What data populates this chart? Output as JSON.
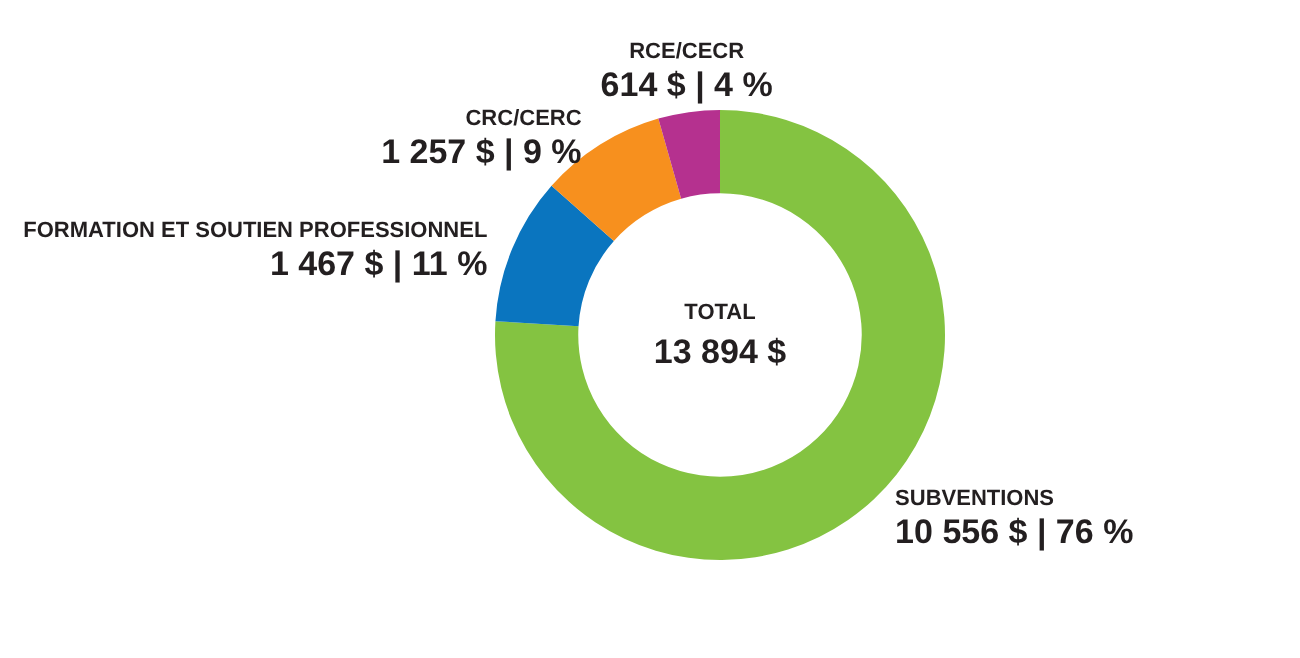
{
  "chart_data": {
    "type": "donut",
    "categories": [
      "SUBVENTIONS",
      "FORMATION ET SOUTIEN PROFESSIONNEL",
      "CRC/CERC",
      "RCE/CECR"
    ],
    "values": [
      10556,
      1467,
      1257,
      614
    ],
    "colors": [
      "#84c341",
      "#0a75bf",
      "#f7901e",
      "#b5318f"
    ],
    "value_labels": [
      "10 556 $ | 76 %",
      "1 467 $ | 11 %",
      "1 257 $ | 9 %",
      "614 $ | 4 %"
    ],
    "annotations": [
      "TOTAL",
      "13 894 $"
    ],
    "legend": false
  }
}
